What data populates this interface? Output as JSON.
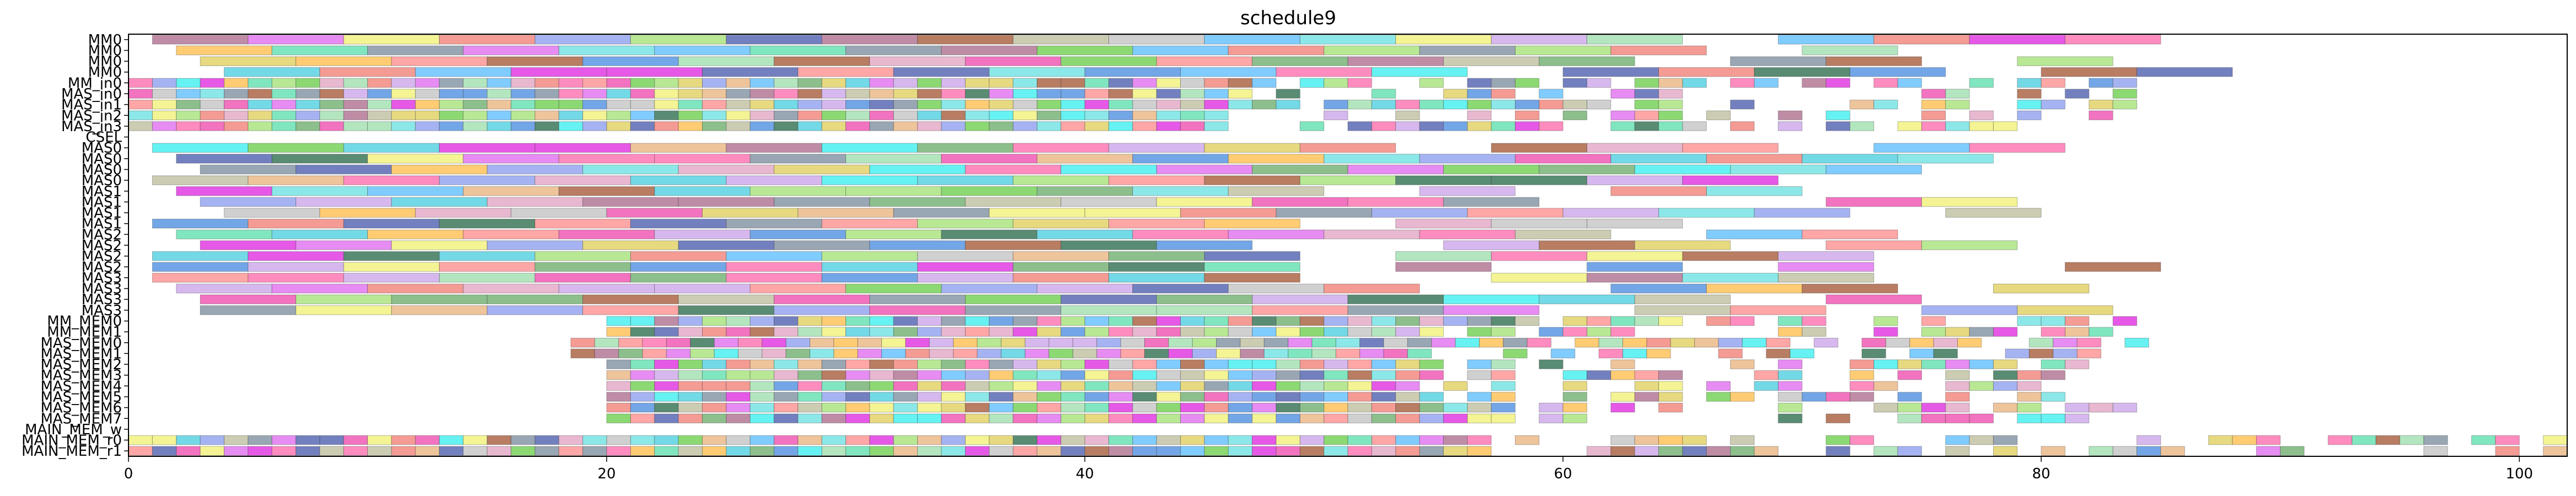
{
  "chart_data": {
    "type": "gantt",
    "title": "schedule9",
    "xlabel": "",
    "ylabel": "",
    "xlim": [
      0,
      102
    ],
    "xticks": [
      0,
      20,
      40,
      60,
      80,
      100
    ],
    "grid": false,
    "rows": [
      "MM0",
      "MM0",
      "MM0",
      "MM0",
      "MM_in0",
      "MAS_in0",
      "MAS_in1",
      "MAS_in2",
      "MAS_in3",
      "CSEL",
      "MAS0",
      "MAS0",
      "MAS0",
      "MAS0",
      "MAS1",
      "MAS1",
      "MAS1",
      "MAS1",
      "MAS2",
      "MAS2",
      "MAS2",
      "MAS2",
      "MAS3",
      "MAS3",
      "MAS3",
      "MAS3",
      "MM_MEM0",
      "MM_MEM1",
      "MAS_MEM0",
      "MAS_MEM1",
      "MAS_MEM2",
      "MAS_MEM3",
      "MAS_MEM4",
      "MAS_MEM5",
      "MAS_MEM6",
      "MAS_MEM7",
      "MAIN_MEM_w",
      "MAIN_MEM_r0",
      "MAIN_MEM_r1"
    ],
    "palette": [
      "#e8b07a",
      "#f07a70",
      "#a0522d",
      "#ee44aa",
      "#c8a0e8",
      "#66e0e0",
      "#f0f070",
      "#c0c0c0",
      "#e0a0c0",
      "#66cc44",
      "#ff8888",
      "#a0e070",
      "#4488dd",
      "#226644",
      "#44ccdd",
      "#dd66ee",
      "#99ddaa",
      "#33eeee",
      "#55ddaa",
      "#4455aa",
      "#dd22dd",
      "#778899",
      "#aa6688",
      "#ff66aa",
      "#ddcc55",
      "#66aa66",
      "#8899ee",
      "#bbbb99",
      "#ffbb44",
      "#55bbff"
    ],
    "row_extents": [
      {
        "start": 1.0,
        "end": 86.0,
        "dur": 4.0
      },
      {
        "start": 2.0,
        "end": 86.0,
        "dur": 4.0
      },
      {
        "start": 3.0,
        "end": 87.0,
        "dur": 4.0
      },
      {
        "start": 4.0,
        "end": 88.5,
        "dur": 4.0
      },
      {
        "start": 0.0,
        "end": 84.0,
        "dur": 1.0
      },
      {
        "start": 0.0,
        "end": 84.0,
        "dur": 1.0
      },
      {
        "start": 0.0,
        "end": 84.0,
        "dur": 1.0
      },
      {
        "start": 0.0,
        "end": 83.0,
        "dur": 1.0
      },
      {
        "start": 0.0,
        "end": 82.5,
        "dur": 1.0
      },
      {
        "start": 0.0,
        "end": 0.0,
        "dur": 0.0
      },
      {
        "start": 1.0,
        "end": 83.0,
        "dur": 4.0
      },
      {
        "start": 2.0,
        "end": 82.0,
        "dur": 4.0
      },
      {
        "start": 3.0,
        "end": 75.0,
        "dur": 4.0
      },
      {
        "start": 1.0,
        "end": 70.0,
        "dur": 4.0
      },
      {
        "start": 2.0,
        "end": 84.0,
        "dur": 4.0
      },
      {
        "start": 3.0,
        "end": 82.0,
        "dur": 4.0
      },
      {
        "start": 4.0,
        "end": 85.0,
        "dur": 4.0
      },
      {
        "start": 1.0,
        "end": 76.0,
        "dur": 4.0
      },
      {
        "start": 2.0,
        "end": 78.0,
        "dur": 4.0
      },
      {
        "start": 3.0,
        "end": 80.0,
        "dur": 4.0
      },
      {
        "start": 1.0,
        "end": 86.0,
        "dur": 4.0
      },
      {
        "start": 1.0,
        "end": 85.0,
        "dur": 4.0
      },
      {
        "start": 1.0,
        "end": 83.0,
        "dur": 4.0
      },
      {
        "start": 2.0,
        "end": 82.0,
        "dur": 4.0
      },
      {
        "start": 3.0,
        "end": 79.0,
        "dur": 4.0
      },
      {
        "start": 3.0,
        "end": 83.5,
        "dur": 4.0
      },
      {
        "start": 20.0,
        "end": 84.0,
        "dur": 1.0
      },
      {
        "start": 20.0,
        "end": 83.0,
        "dur": 1.0
      },
      {
        "start": 18.5,
        "end": 84.5,
        "dur": 1.0
      },
      {
        "start": 18.5,
        "end": 83.0,
        "dur": 1.0
      },
      {
        "start": 20.0,
        "end": 82.0,
        "dur": 1.0
      },
      {
        "start": 20.0,
        "end": 81.5,
        "dur": 1.0
      },
      {
        "start": 20.0,
        "end": 81.0,
        "dur": 1.0
      },
      {
        "start": 20.0,
        "end": 81.5,
        "dur": 1.0
      },
      {
        "start": 20.0,
        "end": 84.0,
        "dur": 1.0
      },
      {
        "start": 20.0,
        "end": 82.0,
        "dur": 1.0
      },
      {
        "start": 0.0,
        "end": 0.0,
        "dur": 0.0
      },
      {
        "start": 0.0,
        "end": 102.0,
        "dur": 1.0
      },
      {
        "start": 0.0,
        "end": 102.0,
        "dur": 1.0
      }
    ]
  }
}
